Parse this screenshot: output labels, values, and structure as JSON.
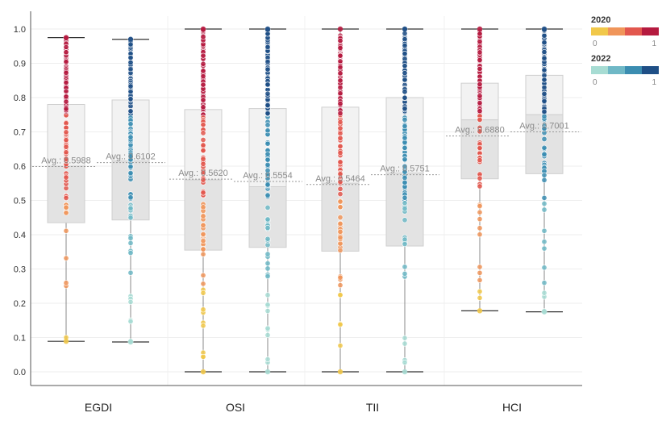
{
  "chart_data": {
    "type": "boxplot",
    "categories": [
      "EGDI",
      "OSI",
      "TII",
      "HCI"
    ],
    "ylim": [
      0,
      1
    ],
    "yticks": [
      "0.0",
      "0.1",
      "0.2",
      "0.3",
      "0.4",
      "0.5",
      "0.6",
      "0.7",
      "0.8",
      "0.9",
      "1.0"
    ],
    "grid": true,
    "legend_placement": "top-right",
    "series": [
      {
        "name": "2020",
        "colors": [
          "#f1c84a",
          "#f0955a",
          "#e2574e",
          "#b51a3f"
        ],
        "boxes": [
          {
            "category": "EGDI",
            "min": 0.089,
            "q1": 0.435,
            "median": 0.6,
            "q3": 0.78,
            "max": 0.975,
            "avg": 0.5988,
            "avg_label": "Avg.: 0.5988"
          },
          {
            "category": "OSI",
            "min": 0.0,
            "q1": 0.355,
            "median": 0.56,
            "q3": 0.765,
            "max": 1.0,
            "avg": 0.562,
            "avg_label": "Avg.: 0.5620"
          },
          {
            "category": "TII",
            "min": 0.0,
            "q1": 0.352,
            "median": 0.55,
            "q3": 0.772,
            "max": 1.0,
            "avg": 0.5464,
            "avg_label": "Avg.: 0.5464"
          },
          {
            "category": "HCI",
            "min": 0.178,
            "q1": 0.563,
            "median": 0.735,
            "q3": 0.842,
            "max": 1.0,
            "avg": 0.688,
            "avg_label": "Avg.: 0.6880"
          }
        ]
      },
      {
        "name": "2022",
        "colors": [
          "#a7dcd3",
          "#6fb8c6",
          "#3b8db1",
          "#1f4f86"
        ],
        "boxes": [
          {
            "category": "EGDI",
            "min": 0.087,
            "q1": 0.443,
            "median": 0.615,
            "q3": 0.793,
            "max": 0.97,
            "avg": 0.6102,
            "avg_label": "Avg.: 0.6102"
          },
          {
            "category": "OSI",
            "min": 0.0,
            "q1": 0.363,
            "median": 0.54,
            "q3": 0.768,
            "max": 1.0,
            "avg": 0.5554,
            "avg_label": "Avg.: 0.5554"
          },
          {
            "category": "TII",
            "min": 0.0,
            "q1": 0.367,
            "median": 0.58,
            "q3": 0.8,
            "max": 1.0,
            "avg": 0.5751,
            "avg_label": "Avg.: 0.5751"
          },
          {
            "category": "HCI",
            "min": 0.175,
            "q1": 0.578,
            "median": 0.75,
            "q3": 0.865,
            "max": 1.0,
            "avg": 0.7001,
            "avg_label": "Avg.: 0.7001"
          }
        ]
      }
    ],
    "legend": [
      {
        "title": "2020",
        "min_label": "0",
        "max_label": "1",
        "colors": [
          "#f1c84a",
          "#f0955a",
          "#e2574e",
          "#b51a3f"
        ]
      },
      {
        "title": "2022",
        "min_label": "0",
        "max_label": "1",
        "colors": [
          "#a7dcd3",
          "#6fb8c6",
          "#3b8db1",
          "#1f4f86"
        ]
      }
    ]
  }
}
